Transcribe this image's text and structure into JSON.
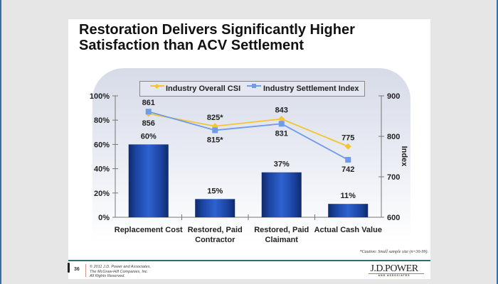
{
  "slide": {
    "title_line1": "Restoration Delivers Significantly Higher",
    "title_line2": "Satisfaction than ACV Settlement",
    "caution": "*Caution: Small sample size (n=30-99).",
    "page_number": "36",
    "copyright_lines": [
      "© 2011 J.D. Power and Associates,",
      "The McGraw-Hill Companies, Inc.",
      "All Rights Reserved."
    ],
    "logo_text": "J.D.POWER",
    "logo_subtext": "AND ASSOCIATES"
  },
  "colors": {
    "bar": "#2458c4",
    "bar_dark": "#0f2a6b",
    "csi_line": "#f2c531",
    "settlement_line": "#6f9be8",
    "rule": "#2f6b73",
    "edge": "#3a6ea5"
  },
  "chart_data": {
    "type": "bar+line",
    "title": "Restoration Delivers Significantly Higher Satisfaction than ACV Settlement",
    "categories": [
      [
        "Replacement Cost"
      ],
      [
        "Restored, Paid",
        "Contractor"
      ],
      [
        "Restored, Paid",
        "Claimant"
      ],
      [
        "Actual Cash Value"
      ]
    ],
    "bars": {
      "name": "Percent",
      "values": [
        60,
        15,
        37,
        11
      ],
      "labels": [
        "60%",
        "15%",
        "37%",
        "11%"
      ]
    },
    "series": [
      {
        "name": "Industry Overall CSI",
        "values": [
          856,
          825,
          843,
          775
        ],
        "labels": [
          "856",
          "825*",
          "843",
          "775"
        ],
        "marker": "diamond"
      },
      {
        "name": "Industry Settlement Index",
        "values": [
          861,
          815,
          831,
          742
        ],
        "labels": [
          "861",
          "815*",
          "831",
          "742"
        ],
        "marker": "square"
      }
    ],
    "left_axis": {
      "ylim": [
        0,
        100
      ],
      "ticks": [
        "0%",
        "20%",
        "40%",
        "60%",
        "80%",
        "100%"
      ],
      "tick_values": [
        0,
        20,
        40,
        60,
        80,
        100
      ]
    },
    "right_axis": {
      "label": "Index",
      "ylim": [
        600,
        900
      ],
      "ticks": [
        "600",
        "700",
        "800",
        "900"
      ],
      "tick_values": [
        600,
        700,
        800,
        900
      ]
    },
    "legend": {
      "position": "top",
      "entries": [
        "Industry Overall CSI",
        "Industry Settlement Index"
      ]
    },
    "grid": false
  }
}
